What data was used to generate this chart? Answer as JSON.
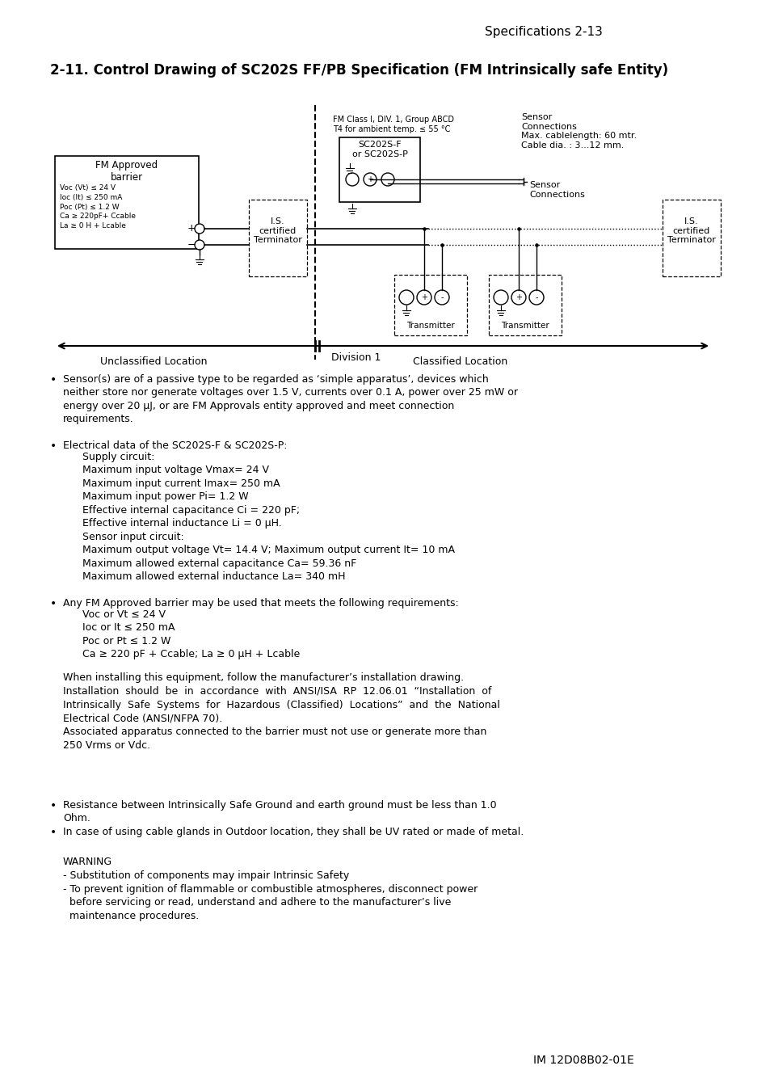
{
  "page_header": "Specifications 2-13",
  "section_title": "2-11. Control Drawing of SC202S FF/PB Specification (FM Intrinsically safe Entity)",
  "background_color": "#ffffff",
  "text_color": "#000000",
  "diagram": {
    "fm_class_label": "FM Class I, DIV. 1, Group ABCD\nT4 for ambient temp. ≤ 55 °C",
    "sensor_connections_label": "Sensor\nConnections\nMax. cablelength: 60 mtr.\nCable dia. : 3...12 mm.",
    "sensor_connections_label2": "Sensor\nConnections",
    "sc202_label": "SC202S-F\nor SC202S-P",
    "fm_barrier_label": "FM Approved\nbarrier",
    "barrier_specs": "Voc (Vt) ≤ 24 V\nIoc (It) ≤ 250 mA\nPoc (Pt) ≤ 1.2 W\nCa ≥ 220pF+ Ccable\nLa ≥ 0 H + Lcable",
    "is_terminator_label": "I.S.\ncertified\nTerminator",
    "is_terminator_label2": "I.S.\ncertified\nTerminator",
    "transmitter_label": "Transmitter",
    "transmitter_label2": "Transmitter",
    "div1_label": "Division 1",
    "unclassified_label": "Unclassified Location",
    "classified_label": "Classified Location"
  },
  "bullet1": "Sensor(s) are of a passive type to be regarded as ‘simple apparatus’, devices which\nneither store nor generate voltages over 1.5 V, currents over 0.1 A, power over 25 mW or\nenergy over 20 μJ, or are FM Approvals entity approved and meet connection\nrequirements.",
  "bullet2_head": "Electrical data of the SC202S-F & SC202S-P:",
  "bullet2_body": "      Supply circuit:\n      Maximum input voltage Vmax= 24 V\n      Maximum input current Imax= 250 mA\n      Maximum input power Pi= 1.2 W\n      Effective internal capacitance Ci = 220 pF;\n      Effective internal inductance Li = 0 μH.\n      Sensor input circuit:\n      Maximum output voltage Vt= 14.4 V; Maximum output current It= 10 mA\n      Maximum allowed external capacitance Ca= 59.36 nF\n      Maximum allowed external inductance La= 340 mH",
  "bullet3_head": "Any FM Approved barrier may be used that meets the following requirements:",
  "bullet3_body": "      Voc or Vt ≤ 24 V\n      Ioc or It ≤ 250 mA\n      Poc or Pt ≤ 1.2 W\n      Ca ≥ 220 pF + Ccable; La ≥ 0 μH + Lcable",
  "install_para": "When installing this equipment, follow the manufacturer’s installation drawing.\nInstallation  should  be  in  accordance  with  ANSI/ISA  RP  12.06.01  “Installation  of\nIntrinsically  Safe  Systems  for  Hazardous  (Classified)  Locations”  and  the  National\nElectrical Code (ANSI/NFPA 70).\nAssociated apparatus connected to the barrier must not use or generate more than\n250 Vrms or Vdc.",
  "bullet4": "Resistance between Intrinsically Safe Ground and earth ground must be less than 1.0\nOhm.",
  "bullet5": "In case of using cable glands in Outdoor location, they shall be UV rated or made of metal.",
  "warning": "WARNING\n- Substitution of components may impair Intrinsic Safety\n- To prevent ignition of flammable or combustible atmospheres, disconnect power\n  before servicing or read, understand and adhere to the manufacturer’s live\n  maintenance procedures.",
  "footer": "IM 12D08B02-01E"
}
